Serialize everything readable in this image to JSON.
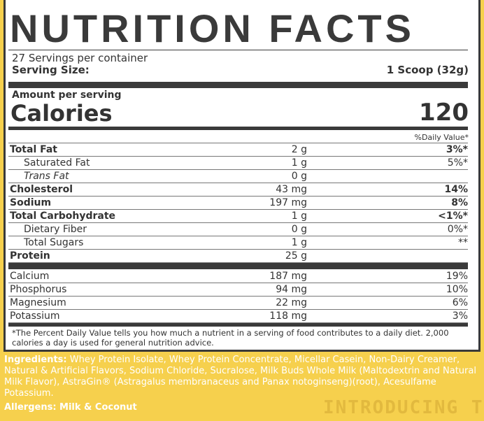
{
  "title": "NUTRITION FACTS",
  "servings": "27 Servings per container",
  "serving_size_label": "Serving Size:",
  "serving_size_value": "1 Scoop (32g)",
  "amount_per_serving": "Amount per serving",
  "calories_label": "Calories",
  "calories_value": "120",
  "dv_header": "%Daily Value*",
  "nutrients": [
    {
      "name": "Total Fat",
      "amount": "2 g",
      "dv": "3%*",
      "bold": true
    },
    {
      "name": "Saturated Fat",
      "amount": "1 g",
      "dv": "5%*",
      "indent": true
    },
    {
      "name": "Trans Fat",
      "amount": "0 g",
      "dv": "",
      "indent": true,
      "italic": true
    },
    {
      "name": "Cholesterol",
      "amount": "43 mg",
      "dv": "14%",
      "bold": true
    },
    {
      "name": "Sodium",
      "amount": "197 mg",
      "dv": "8%",
      "bold": true
    },
    {
      "name": "Total Carbohydrate",
      "amount": "1 g",
      "dv": "<1%*",
      "bold": true
    },
    {
      "name": "Dietary Fiber",
      "amount": "0 g",
      "dv": "0%*",
      "indent": true
    },
    {
      "name": "Total Sugars",
      "amount": "1 g",
      "dv": "**",
      "indent": true
    },
    {
      "name": "Protein",
      "amount": "25 g",
      "dv": "",
      "bold": true
    }
  ],
  "minerals": [
    {
      "name": "Calcium",
      "amount": "187 mg",
      "dv": "19%"
    },
    {
      "name": "Phosphorus",
      "amount": "94 mg",
      "dv": "10%"
    },
    {
      "name": "Magnesium",
      "amount": "22 mg",
      "dv": "6%"
    },
    {
      "name": "Potassium",
      "amount": "118 mg",
      "dv": "3%"
    }
  ],
  "footnote": "*The Percent Daily Value tells you how much a nutrient in a serving of food contributes to a daily diet. 2,000 calories a day is used for general nutrition advice.",
  "ingredients_label": "Ingredients:",
  "ingredients": " Whey Protein Isolate, Whey Protein Concentrate, Micellar Casein, Non-Dairy Creamer, Natural & Artificial Flavors, Sodium Chloride, Sucralose, Milk Buds Whole Milk (Maltodextrin and Natural Milk Flavor), AstraGin® (Astragalus membranaceus and Panax notoginseng)(root), Acesulfame Potassium.",
  "allergens": "Allergens: Milk & Coconut",
  "background_text": "INTRODUCING T",
  "colors": {
    "background": "#f6d04d",
    "ink": "#3a3a3a"
  }
}
